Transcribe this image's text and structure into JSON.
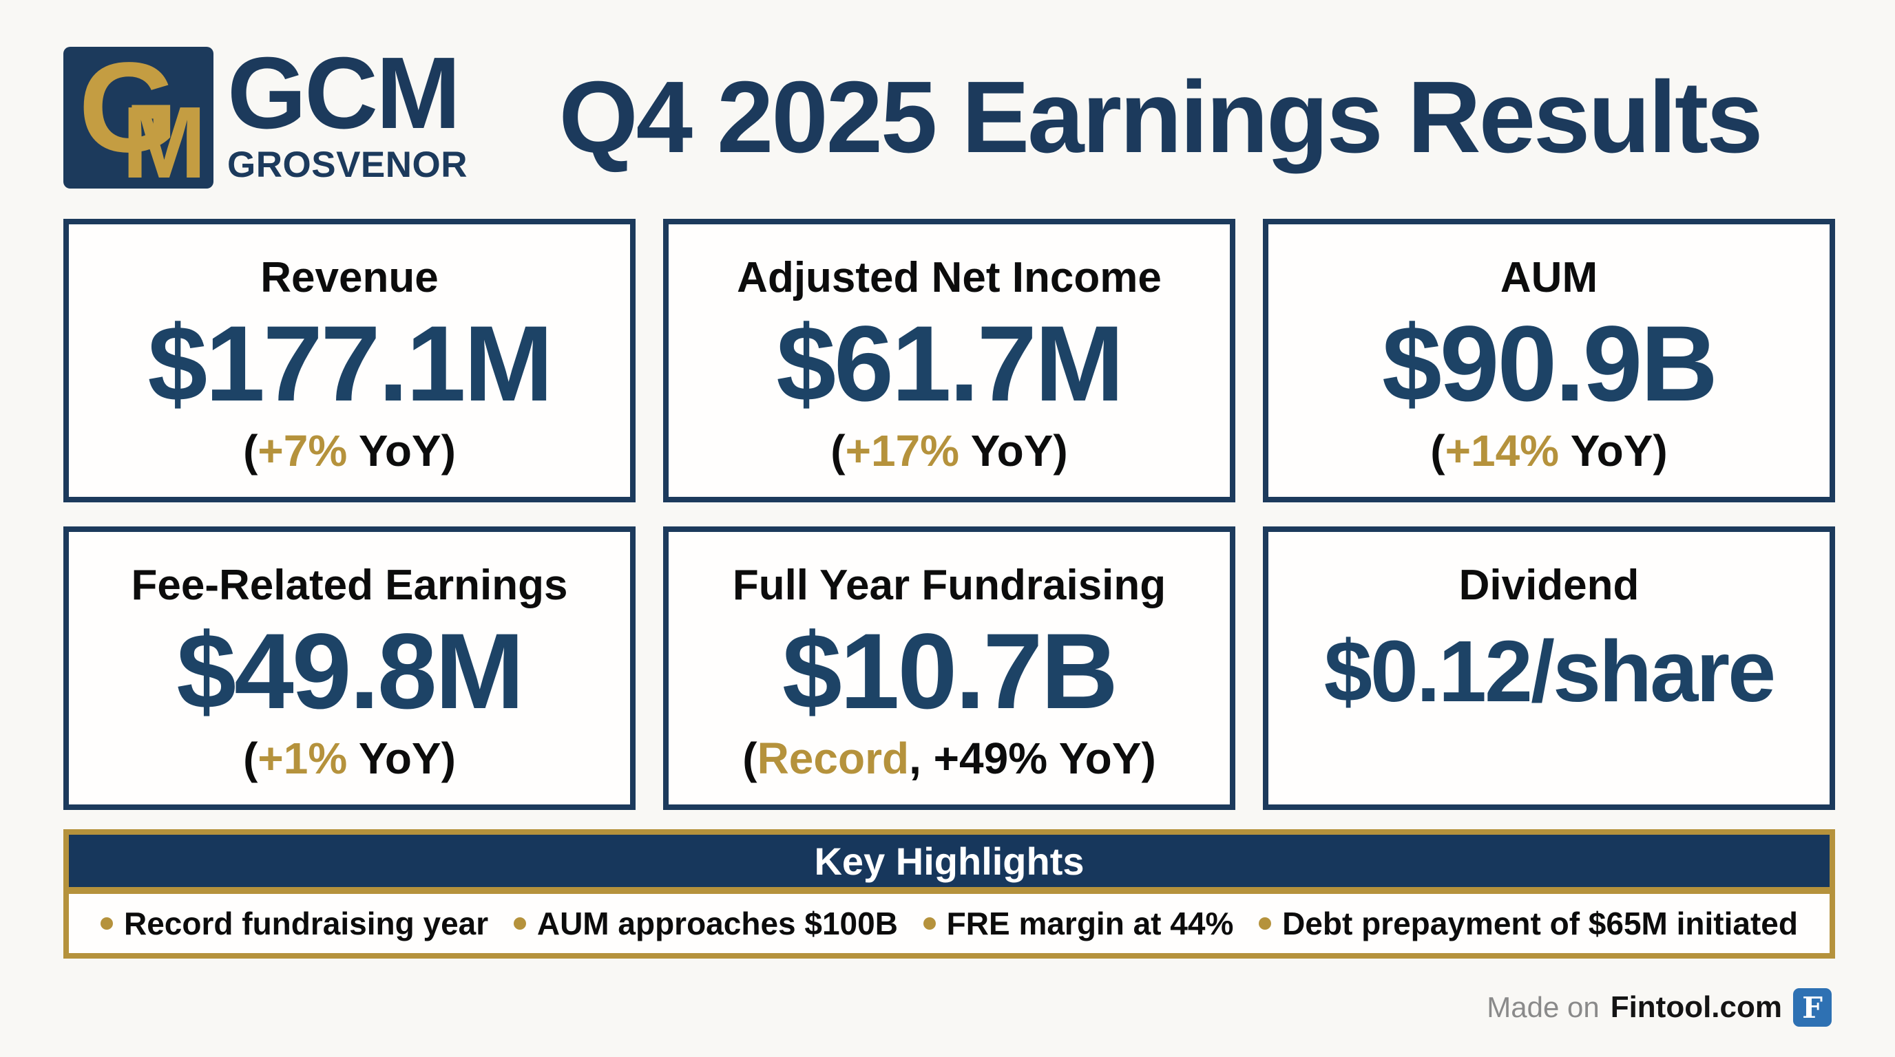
{
  "header": {
    "monogram": {
      "g": "G",
      "m": "M"
    },
    "brand_name": "GCM",
    "brand_subname": "GROSVENOR",
    "title": "Q4 2025 Earnings Results"
  },
  "cards": [
    {
      "label": "Revenue",
      "value": "$177.1M",
      "sub_open": "(",
      "sub_gold": "+7%",
      "sub_rest": " YoY)"
    },
    {
      "label": "Adjusted Net Income",
      "value": "$61.7M",
      "sub_open": "(",
      "sub_gold": "+17%",
      "sub_rest": " YoY)"
    },
    {
      "label": "AUM",
      "value": "$90.9B",
      "sub_open": "(",
      "sub_gold": "+14%",
      "sub_rest": " YoY)"
    },
    {
      "label": "Fee-Related Earnings",
      "value": "$49.8M",
      "sub_open": "(",
      "sub_gold": "+1%",
      "sub_rest": " YoY)"
    },
    {
      "label": "Full Year Fundraising",
      "value": "$10.7B",
      "sub_open": "(",
      "sub_gold": "Record",
      "sub_rest": ", +49% YoY)"
    },
    {
      "label": "Dividend",
      "value": "$0.12/share",
      "sub_open": "",
      "sub_gold": "",
      "sub_rest": ""
    }
  ],
  "highlights": {
    "title": "Key Highlights",
    "items": [
      "Record fundraising year",
      "AUM approaches $100B",
      "FRE margin at 44%",
      "Debt prepayment of $65M initiated"
    ]
  },
  "footer": {
    "made_on": "Made on",
    "brand": "Fintool.com",
    "logo_letter": "F"
  },
  "colors": {
    "navy": "#1c3a5c",
    "number_navy": "#1d4366",
    "gold": "#b5923c",
    "logo_gold": "#c49d42",
    "highlights_header_navy": "#17375c",
    "fintool_blue": "#2e71b3"
  }
}
